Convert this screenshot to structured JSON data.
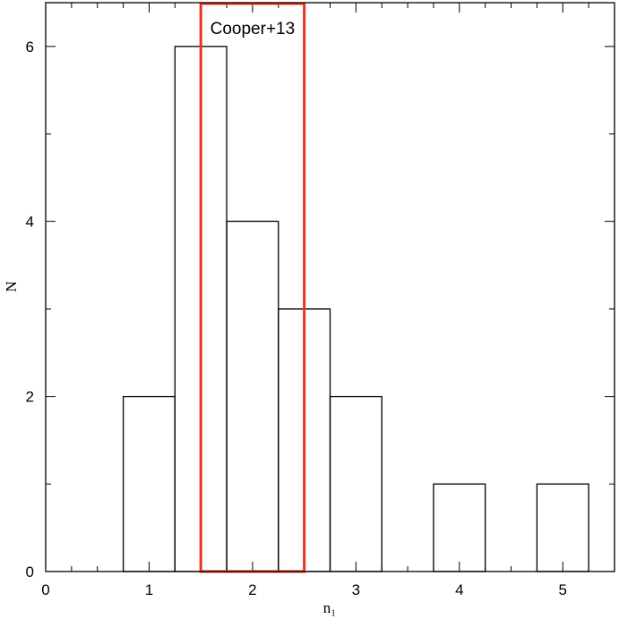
{
  "chart_data": {
    "type": "histogram",
    "xlabel": "n₁",
    "ylabel": "N",
    "bins": [
      0.75,
      1.25,
      1.75,
      2.25,
      2.75,
      3.25,
      3.75,
      4.25,
      4.75,
      5.25
    ],
    "values": [
      2,
      6,
      4,
      3,
      2,
      0,
      1,
      0,
      1
    ],
    "color": "#000000",
    "xlim": [
      0,
      5.5
    ],
    "ylim": [
      0,
      6.5
    ],
    "xticks": [
      0,
      1,
      2,
      3,
      4,
      5
    ],
    "yticks": [
      0,
      2,
      4,
      6
    ],
    "xminorticks": [
      0.25,
      0.5,
      0.75,
      1.25,
      1.5,
      1.75,
      2.25,
      2.5,
      2.75,
      3.25,
      3.5,
      3.75,
      4.25,
      4.5,
      4.75,
      5.25
    ],
    "yminorticks": [
      1,
      3,
      5
    ],
    "annotation": {
      "text": "Cooper+13",
      "x": [
        1.5,
        2.5
      ],
      "color": "#e8331f"
    }
  }
}
